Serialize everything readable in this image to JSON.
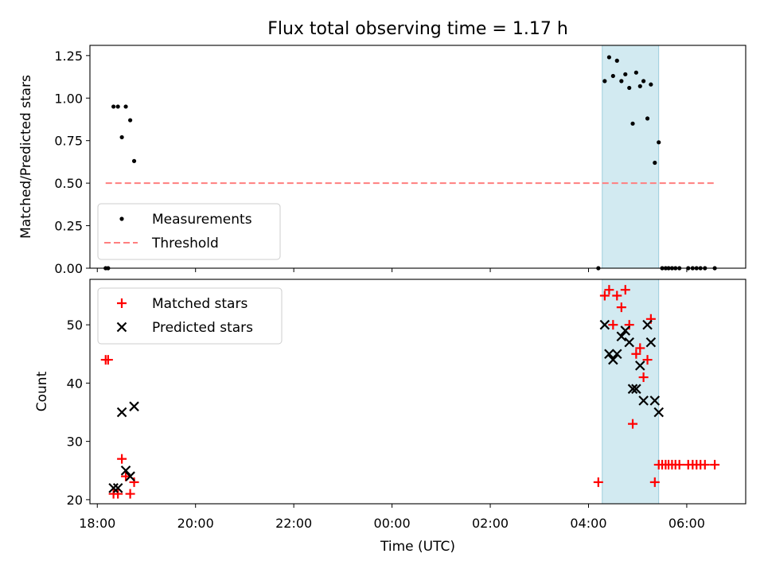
{
  "chart_data": {
    "title": "Flux total observing time = 1.17 h",
    "xlabel": "Time (UTC)",
    "x_unit": "hours (UTC, continuing past midnight)",
    "x_ticks": [
      {
        "value": 18,
        "label": "18:00"
      },
      {
        "value": 20,
        "label": "20:00"
      },
      {
        "value": 22,
        "label": "22:00"
      },
      {
        "value": 24,
        "label": "00:00"
      },
      {
        "value": 26,
        "label": "02:00"
      },
      {
        "value": 28,
        "label": "04:00"
      },
      {
        "value": 30,
        "label": "06:00"
      }
    ],
    "xlim": [
      17.85,
      31.2
    ],
    "highlight_span": {
      "x0": 28.28,
      "x1": 29.43,
      "color": "#add8e6"
    },
    "panels": [
      {
        "type": "scatter",
        "ylabel": "Matched/Predicted stars",
        "ylim": [
          0,
          1.31
        ],
        "yticks": [
          {
            "value": 0,
            "label": "0.00"
          },
          {
            "value": 0.25,
            "label": "0.25"
          },
          {
            "value": 0.5,
            "label": "0.50"
          },
          {
            "value": 0.75,
            "label": "0.75"
          },
          {
            "value": 1.0,
            "label": "1.00"
          },
          {
            "value": 1.25,
            "label": "1.25"
          }
        ],
        "legend": {
          "placement": "lower-left",
          "entries": [
            "Measurements",
            "Threshold"
          ]
        },
        "series": [
          {
            "name": "Measurements",
            "marker": "dot",
            "color": "#000000",
            "points": [
              [
                18.17,
                0.0
              ],
              [
                18.22,
                0.0
              ],
              [
                18.33,
                0.95
              ],
              [
                18.42,
                0.95
              ],
              [
                18.5,
                0.77
              ],
              [
                18.58,
                0.95
              ],
              [
                18.67,
                0.87
              ],
              [
                18.75,
                0.63
              ],
              [
                28.2,
                0.0
              ],
              [
                28.33,
                1.1
              ],
              [
                28.42,
                1.24
              ],
              [
                28.5,
                1.13
              ],
              [
                28.58,
                1.22
              ],
              [
                28.67,
                1.1
              ],
              [
                28.75,
                1.14
              ],
              [
                28.83,
                1.06
              ],
              [
                28.9,
                0.85
              ],
              [
                28.97,
                1.15
              ],
              [
                29.05,
                1.07
              ],
              [
                29.12,
                1.1
              ],
              [
                29.2,
                0.88
              ],
              [
                29.27,
                1.08
              ],
              [
                29.35,
                0.62
              ],
              [
                29.43,
                0.74
              ],
              [
                29.5,
                0.0
              ],
              [
                29.57,
                0.0
              ],
              [
                29.63,
                0.0
              ],
              [
                29.7,
                0.0
              ],
              [
                29.77,
                0.0
              ],
              [
                29.85,
                0.0
              ],
              [
                30.03,
                0.0
              ],
              [
                30.12,
                0.0
              ],
              [
                30.2,
                0.0
              ],
              [
                30.28,
                0.0
              ],
              [
                30.37,
                0.0
              ],
              [
                30.57,
                0.0
              ]
            ]
          },
          {
            "name": "Threshold",
            "marker": "dashed-line",
            "color": "#ff7f7f",
            "points": [
              [
                18.17,
                0.5
              ],
              [
                30.57,
                0.5
              ]
            ]
          }
        ]
      },
      {
        "type": "scatter",
        "ylabel": "Count",
        "ylim": [
          19.3,
          57.8
        ],
        "yticks": [
          {
            "value": 20,
            "label": "20"
          },
          {
            "value": 30,
            "label": "30"
          },
          {
            "value": 40,
            "label": "40"
          },
          {
            "value": 50,
            "label": "50"
          }
        ],
        "legend": {
          "placement": "upper-left",
          "entries": [
            "Matched stars",
            "Predicted stars"
          ]
        },
        "series": [
          {
            "name": "Matched stars",
            "marker": "plus",
            "color": "#ff0000",
            "points": [
              [
                18.17,
                44
              ],
              [
                18.22,
                44
              ],
              [
                18.33,
                21
              ],
              [
                18.42,
                21
              ],
              [
                18.5,
                27
              ],
              [
                18.58,
                24
              ],
              [
                18.67,
                21
              ],
              [
                18.75,
                23
              ],
              [
                28.2,
                23
              ],
              [
                28.33,
                55
              ],
              [
                28.42,
                56
              ],
              [
                28.5,
                50
              ],
              [
                28.58,
                55
              ],
              [
                28.67,
                53
              ],
              [
                28.75,
                56
              ],
              [
                28.83,
                50
              ],
              [
                28.9,
                33
              ],
              [
                28.97,
                45
              ],
              [
                29.05,
                46
              ],
              [
                29.12,
                41
              ],
              [
                29.2,
                44
              ],
              [
                29.27,
                51
              ],
              [
                29.35,
                23
              ],
              [
                29.43,
                26
              ],
              [
                29.5,
                26
              ],
              [
                29.57,
                26
              ],
              [
                29.63,
                26
              ],
              [
                29.7,
                26
              ],
              [
                29.77,
                26
              ],
              [
                29.85,
                26
              ],
              [
                30.03,
                26
              ],
              [
                30.12,
                26
              ],
              [
                30.2,
                26
              ],
              [
                30.28,
                26
              ],
              [
                30.37,
                26
              ],
              [
                30.57,
                26
              ]
            ]
          },
          {
            "name": "Predicted stars",
            "marker": "x",
            "color": "#000000",
            "points": [
              [
                18.33,
                22
              ],
              [
                18.42,
                22
              ],
              [
                18.5,
                35
              ],
              [
                18.58,
                25
              ],
              [
                18.67,
                24
              ],
              [
                18.75,
                36
              ],
              [
                28.33,
                50
              ],
              [
                28.42,
                45
              ],
              [
                28.5,
                44
              ],
              [
                28.58,
                45
              ],
              [
                28.67,
                48
              ],
              [
                28.75,
                49
              ],
              [
                28.83,
                47
              ],
              [
                28.9,
                39
              ],
              [
                28.97,
                39
              ],
              [
                29.05,
                43
              ],
              [
                29.12,
                37
              ],
              [
                29.2,
                50
              ],
              [
                29.27,
                47
              ],
              [
                29.35,
                37
              ],
              [
                29.43,
                35
              ]
            ]
          }
        ]
      }
    ]
  }
}
